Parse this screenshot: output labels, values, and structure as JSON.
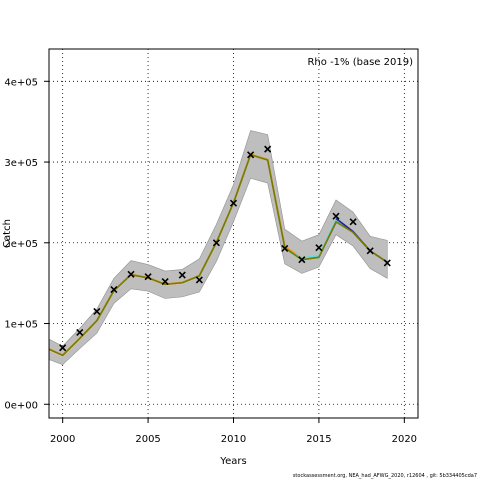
{
  "footer_text": "stockassessment.org, NEA_had_AFWG_2020, r12604 , git: 5b334405cda7",
  "chart_data": {
    "type": "line",
    "title": "",
    "xlabel": "Years",
    "ylabel": "Catch",
    "annotation": "Rho -1% (base 2019)",
    "xlim": [
      1999.2,
      2020.8
    ],
    "ylim": [
      -17000,
      440000
    ],
    "x_ticks": [
      2000,
      2005,
      2010,
      2015,
      2020
    ],
    "x_tick_labels": [
      "2000",
      "2005",
      "2010",
      "2015",
      "2020"
    ],
    "y_ticks": [
      0,
      100000,
      200000,
      300000,
      400000
    ],
    "y_tick_labels": [
      "0e+00",
      "1e+05",
      "2e+05",
      "3e+05",
      "4e+05"
    ],
    "grid": true,
    "grid_style": "dotted",
    "ci_color": "#bebebe",
    "ci_band": {
      "x": [
        1999,
        2000,
        2001,
        2002,
        2003,
        2004,
        2005,
        2006,
        2007,
        2008,
        2009,
        2010,
        2011,
        2012,
        2013,
        2014,
        2015,
        2016,
        2017,
        2018,
        2019
      ],
      "lower": [
        57000,
        49000,
        69000,
        88000,
        125000,
        143000,
        140000,
        131000,
        133000,
        139000,
        177000,
        226000,
        280000,
        274000,
        174000,
        162000,
        170000,
        210000,
        196000,
        168000,
        156000
      ],
      "upper": [
        83000,
        72000,
        94000,
        118000,
        156000,
        178000,
        173000,
        165000,
        167000,
        180000,
        223000,
        272000,
        339000,
        334000,
        217000,
        202000,
        210000,
        253000,
        238000,
        208000,
        203000
      ]
    },
    "series": [
      {
        "color": "#fcc5c0",
        "x": [
          1999,
          2000,
          2001,
          2002,
          2003,
          2004,
          2005,
          2006,
          2007,
          2008,
          2009,
          2010,
          2011,
          2012
        ],
        "values": [
          69000,
          60000,
          81000,
          103000,
          140000,
          160000,
          156000,
          148000,
          150000,
          159000,
          200000,
          249000,
          309000,
          303000
        ]
      },
      {
        "color": "#ef3b2c",
        "x": [
          1999,
          2000,
          2001,
          2002,
          2003,
          2004,
          2005,
          2006,
          2007,
          2008,
          2009,
          2010,
          2011,
          2012,
          2013
        ],
        "values": [
          70000,
          61000,
          81500,
          103500,
          141000,
          160500,
          156500,
          148500,
          150500,
          159500,
          200500,
          249500,
          309500,
          303000,
          196000
        ]
      },
      {
        "color": "#fe9929",
        "x": [
          1999,
          2000,
          2001,
          2002,
          2003,
          2004,
          2005,
          2006,
          2007,
          2008,
          2009,
          2010,
          2011,
          2012,
          2013,
          2014
        ],
        "values": [
          70500,
          61000,
          82000,
          104000,
          141000,
          161000,
          157000,
          149000,
          151000,
          159500,
          201000,
          250000,
          309500,
          303500,
          196000,
          181000
        ]
      },
      {
        "color": "#78c679",
        "x": [
          1999,
          2000,
          2001,
          2002,
          2003,
          2004,
          2005,
          2006,
          2007,
          2008,
          2009,
          2010,
          2011,
          2012,
          2013,
          2014,
          2015
        ],
        "values": [
          70000,
          60500,
          81500,
          103500,
          140500,
          160500,
          156500,
          148500,
          150500,
          159000,
          200500,
          249500,
          309000,
          302500,
          194000,
          179000,
          182000
        ]
      },
      {
        "color": "#1d91c0",
        "x": [
          2013,
          2014,
          2015,
          2016
        ],
        "values": [
          193000,
          180000,
          183000,
          225000
        ]
      },
      {
        "color": "#5edcdc",
        "x": [
          2013,
          2014,
          2015,
          2016,
          2017
        ],
        "values": [
          193000,
          181000,
          184000,
          228000,
          214000
        ]
      },
      {
        "color": "#2020a0",
        "x": [
          2016,
          2017,
          2018
        ],
        "values": [
          230000,
          214000,
          190000
        ]
      },
      {
        "color": "#222222",
        "x": [
          2017,
          2018,
          2019
        ],
        "values": [
          213000,
          190000,
          176000
        ]
      },
      {
        "color": "#7a7a00",
        "x": [
          1999,
          2000,
          2001,
          2002,
          2003,
          2004,
          2005,
          2006,
          2007,
          2008,
          2009,
          2010,
          2011,
          2012,
          2013,
          2014,
          2015,
          2016,
          2017,
          2018,
          2019
        ],
        "values": [
          70000,
          60500,
          81500,
          103500,
          140500,
          160500,
          156500,
          148500,
          150500,
          159000,
          200500,
          249500,
          309000,
          302500,
          194000,
          179000,
          182000,
          226000,
          213000,
          190000,
          176000
        ]
      }
    ],
    "observations": {
      "x": [
        2000,
        2001,
        2002,
        2003,
        2004,
        2005,
        2006,
        2007,
        2008,
        2009,
        2010,
        2011,
        2012,
        2013,
        2014,
        2015,
        2016,
        2017,
        2018,
        2019
      ],
      "values": [
        70000,
        89000,
        115000,
        142000,
        161000,
        158000,
        152000,
        160000,
        154000,
        200000,
        249000,
        309000,
        316000,
        193000,
        179000,
        194000,
        233000,
        226000,
        190000,
        175000
      ]
    }
  }
}
